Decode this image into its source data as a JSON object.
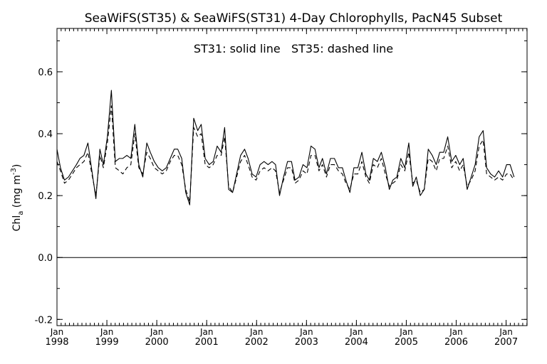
{
  "chart_data": {
    "type": "line",
    "title": "SeaWiFS(ST35) & SeaWiFS(ST31) 4-Day Chlorophylls, PacN45 Subset",
    "annotation": "ST31: solid line   ST35: dashed line",
    "ylabel": {
      "main": "Chl",
      "sub": "a",
      "unit_prefix": " (mg m",
      "unit_sup": "-3",
      "unit_suffix": ")"
    },
    "ylim": [
      -0.22,
      0.74
    ],
    "xlim": [
      1998.0,
      2007.42
    ],
    "yticks": [
      {
        "value": -0.2,
        "label": "-0.2"
      },
      {
        "value": 0.0,
        "label": "0.0"
      },
      {
        "value": 0.2,
        "label": "0.2"
      },
      {
        "value": 0.4,
        "label": "0.4"
      },
      {
        "value": 0.6,
        "label": "0.6"
      }
    ],
    "xticks": [
      {
        "value": 1998,
        "month": "Jan",
        "year": "1998"
      },
      {
        "value": 1999,
        "month": "Jan",
        "year": "1999"
      },
      {
        "value": 2000,
        "month": "Jan",
        "year": "2000"
      },
      {
        "value": 2001,
        "month": "Jan",
        "year": "2001"
      },
      {
        "value": 2002,
        "month": "Jan",
        "year": "2002"
      },
      {
        "value": 2003,
        "month": "Jan",
        "year": "2003"
      },
      {
        "value": 2004,
        "month": "Jan",
        "year": "2004"
      },
      {
        "value": 2005,
        "month": "Jan",
        "year": "2005"
      },
      {
        "value": 2006,
        "month": "Jan",
        "year": "2006"
      },
      {
        "value": 2007,
        "month": "Jan",
        "year": "2007"
      }
    ],
    "zero_line": 0.0,
    "grid": false,
    "series": [
      {
        "name": "ST31",
        "style": "solid",
        "points": [
          [
            1998.0,
            0.35
          ],
          [
            1998.07,
            0.29
          ],
          [
            1998.15,
            0.25
          ],
          [
            1998.23,
            0.26
          ],
          [
            1998.31,
            0.28
          ],
          [
            1998.39,
            0.3
          ],
          [
            1998.46,
            0.32
          ],
          [
            1998.54,
            0.33
          ],
          [
            1998.62,
            0.37
          ],
          [
            1998.7,
            0.28
          ],
          [
            1998.78,
            0.19
          ],
          [
            1998.86,
            0.35
          ],
          [
            1998.93,
            0.3
          ],
          [
            1999.01,
            0.39
          ],
          [
            1999.09,
            0.54
          ],
          [
            1999.17,
            0.31
          ],
          [
            1999.25,
            0.32
          ],
          [
            1999.32,
            0.32
          ],
          [
            1999.4,
            0.33
          ],
          [
            1999.48,
            0.32
          ],
          [
            1999.56,
            0.43
          ],
          [
            1999.64,
            0.3
          ],
          [
            1999.72,
            0.26
          ],
          [
            1999.8,
            0.37
          ],
          [
            1999.87,
            0.34
          ],
          [
            1999.95,
            0.31
          ],
          [
            2000.03,
            0.29
          ],
          [
            2000.11,
            0.28
          ],
          [
            2000.19,
            0.29
          ],
          [
            2000.27,
            0.32
          ],
          [
            2000.35,
            0.35
          ],
          [
            2000.42,
            0.35
          ],
          [
            2000.5,
            0.32
          ],
          [
            2000.58,
            0.21
          ],
          [
            2000.66,
            0.17
          ],
          [
            2000.74,
            0.45
          ],
          [
            2000.82,
            0.41
          ],
          [
            2000.89,
            0.43
          ],
          [
            2000.97,
            0.32
          ],
          [
            2001.05,
            0.3
          ],
          [
            2001.13,
            0.31
          ],
          [
            2001.21,
            0.36
          ],
          [
            2001.29,
            0.34
          ],
          [
            2001.36,
            0.42
          ],
          [
            2001.44,
            0.22
          ],
          [
            2001.52,
            0.21
          ],
          [
            2001.6,
            0.27
          ],
          [
            2001.68,
            0.33
          ],
          [
            2001.76,
            0.35
          ],
          [
            2001.83,
            0.32
          ],
          [
            2001.91,
            0.27
          ],
          [
            2001.99,
            0.26
          ],
          [
            2002.07,
            0.3
          ],
          [
            2002.15,
            0.31
          ],
          [
            2002.23,
            0.3
          ],
          [
            2002.31,
            0.31
          ],
          [
            2002.38,
            0.3
          ],
          [
            2002.46,
            0.2
          ],
          [
            2002.54,
            0.26
          ],
          [
            2002.62,
            0.31
          ],
          [
            2002.7,
            0.31
          ],
          [
            2002.77,
            0.25
          ],
          [
            2002.85,
            0.26
          ],
          [
            2002.93,
            0.3
          ],
          [
            2003.01,
            0.29
          ],
          [
            2003.09,
            0.36
          ],
          [
            2003.17,
            0.35
          ],
          [
            2003.25,
            0.29
          ],
          [
            2003.32,
            0.32
          ],
          [
            2003.4,
            0.27
          ],
          [
            2003.48,
            0.32
          ],
          [
            2003.56,
            0.32
          ],
          [
            2003.64,
            0.29
          ],
          [
            2003.72,
            0.29
          ],
          [
            2003.79,
            0.25
          ],
          [
            2003.87,
            0.21
          ],
          [
            2003.95,
            0.29
          ],
          [
            2004.03,
            0.29
          ],
          [
            2004.11,
            0.34
          ],
          [
            2004.19,
            0.27
          ],
          [
            2004.26,
            0.25
          ],
          [
            2004.34,
            0.32
          ],
          [
            2004.42,
            0.31
          ],
          [
            2004.5,
            0.34
          ],
          [
            2004.58,
            0.29
          ],
          [
            2004.66,
            0.22
          ],
          [
            2004.73,
            0.25
          ],
          [
            2004.81,
            0.26
          ],
          [
            2004.89,
            0.32
          ],
          [
            2004.97,
            0.29
          ],
          [
            2005.05,
            0.37
          ],
          [
            2005.13,
            0.23
          ],
          [
            2005.2,
            0.26
          ],
          [
            2005.28,
            0.2
          ],
          [
            2005.36,
            0.22
          ],
          [
            2005.44,
            0.35
          ],
          [
            2005.52,
            0.33
          ],
          [
            2005.6,
            0.3
          ],
          [
            2005.67,
            0.34
          ],
          [
            2005.75,
            0.34
          ],
          [
            2005.83,
            0.39
          ],
          [
            2005.91,
            0.31
          ],
          [
            2005.99,
            0.33
          ],
          [
            2006.07,
            0.3
          ],
          [
            2006.14,
            0.32
          ],
          [
            2006.22,
            0.22
          ],
          [
            2006.3,
            0.26
          ],
          [
            2006.38,
            0.3
          ],
          [
            2006.46,
            0.39
          ],
          [
            2006.54,
            0.41
          ],
          [
            2006.61,
            0.29
          ],
          [
            2006.69,
            0.27
          ],
          [
            2006.77,
            0.26
          ],
          [
            2006.85,
            0.28
          ],
          [
            2006.93,
            0.26
          ],
          [
            2007.01,
            0.3
          ],
          [
            2007.08,
            0.3
          ],
          [
            2007.16,
            0.26
          ]
        ]
      },
      {
        "name": "ST35",
        "style": "dashed",
        "points": [
          [
            1998.0,
            0.31
          ],
          [
            1998.07,
            0.28
          ],
          [
            1998.15,
            0.24
          ],
          [
            1998.23,
            0.25
          ],
          [
            1998.31,
            0.27
          ],
          [
            1998.39,
            0.29
          ],
          [
            1998.46,
            0.3
          ],
          [
            1998.54,
            0.31
          ],
          [
            1998.62,
            0.34
          ],
          [
            1998.7,
            0.27
          ],
          [
            1998.78,
            0.2
          ],
          [
            1998.86,
            0.33
          ],
          [
            1998.93,
            0.29
          ],
          [
            1999.01,
            0.37
          ],
          [
            1999.09,
            0.49
          ],
          [
            1999.17,
            0.29
          ],
          [
            1999.25,
            0.28
          ],
          [
            1999.32,
            0.27
          ],
          [
            1999.4,
            0.29
          ],
          [
            1999.48,
            0.3
          ],
          [
            1999.56,
            0.4
          ],
          [
            1999.64,
            0.29
          ],
          [
            1999.72,
            0.27
          ],
          [
            1999.8,
            0.34
          ],
          [
            1999.87,
            0.32
          ],
          [
            1999.95,
            0.29
          ],
          [
            2000.03,
            0.28
          ],
          [
            2000.11,
            0.27
          ],
          [
            2000.19,
            0.28
          ],
          [
            2000.27,
            0.31
          ],
          [
            2000.35,
            0.33
          ],
          [
            2000.42,
            0.33
          ],
          [
            2000.5,
            0.3
          ],
          [
            2000.58,
            0.22
          ],
          [
            2000.66,
            0.18
          ],
          [
            2000.74,
            0.42
          ],
          [
            2000.82,
            0.39
          ],
          [
            2000.89,
            0.4
          ],
          [
            2000.97,
            0.3
          ],
          [
            2001.05,
            0.29
          ],
          [
            2001.13,
            0.3
          ],
          [
            2001.21,
            0.33
          ],
          [
            2001.29,
            0.33
          ],
          [
            2001.36,
            0.39
          ],
          [
            2001.44,
            0.23
          ],
          [
            2001.52,
            0.21
          ],
          [
            2001.6,
            0.26
          ],
          [
            2001.68,
            0.31
          ],
          [
            2001.76,
            0.33
          ],
          [
            2001.83,
            0.3
          ],
          [
            2001.91,
            0.26
          ],
          [
            2001.99,
            0.25
          ],
          [
            2002.07,
            0.28
          ],
          [
            2002.15,
            0.29
          ],
          [
            2002.23,
            0.28
          ],
          [
            2002.31,
            0.29
          ],
          [
            2002.38,
            0.28
          ],
          [
            2002.46,
            0.21
          ],
          [
            2002.54,
            0.25
          ],
          [
            2002.62,
            0.29
          ],
          [
            2002.7,
            0.29
          ],
          [
            2002.77,
            0.24
          ],
          [
            2002.85,
            0.25
          ],
          [
            2002.93,
            0.28
          ],
          [
            2003.01,
            0.27
          ],
          [
            2003.09,
            0.33
          ],
          [
            2003.17,
            0.33
          ],
          [
            2003.25,
            0.28
          ],
          [
            2003.32,
            0.3
          ],
          [
            2003.4,
            0.26
          ],
          [
            2003.48,
            0.3
          ],
          [
            2003.56,
            0.3
          ],
          [
            2003.64,
            0.28
          ],
          [
            2003.72,
            0.27
          ],
          [
            2003.79,
            0.24
          ],
          [
            2003.87,
            0.22
          ],
          [
            2003.95,
            0.27
          ],
          [
            2004.03,
            0.27
          ],
          [
            2004.11,
            0.31
          ],
          [
            2004.19,
            0.26
          ],
          [
            2004.26,
            0.24
          ],
          [
            2004.34,
            0.3
          ],
          [
            2004.42,
            0.29
          ],
          [
            2004.5,
            0.32
          ],
          [
            2004.58,
            0.27
          ],
          [
            2004.66,
            0.23
          ],
          [
            2004.73,
            0.24
          ],
          [
            2004.81,
            0.25
          ],
          [
            2004.89,
            0.3
          ],
          [
            2004.97,
            0.28
          ],
          [
            2005.05,
            0.34
          ],
          [
            2005.13,
            0.24
          ],
          [
            2005.2,
            0.25
          ],
          [
            2005.28,
            0.21
          ],
          [
            2005.36,
            0.22
          ],
          [
            2005.44,
            0.32
          ],
          [
            2005.52,
            0.31
          ],
          [
            2005.6,
            0.28
          ],
          [
            2005.67,
            0.32
          ],
          [
            2005.75,
            0.32
          ],
          [
            2005.83,
            0.36
          ],
          [
            2005.91,
            0.29
          ],
          [
            2005.99,
            0.31
          ],
          [
            2006.07,
            0.28
          ],
          [
            2006.14,
            0.3
          ],
          [
            2006.22,
            0.23
          ],
          [
            2006.3,
            0.25
          ],
          [
            2006.38,
            0.28
          ],
          [
            2006.46,
            0.36
          ],
          [
            2006.54,
            0.38
          ],
          [
            2006.61,
            0.27
          ],
          [
            2006.69,
            0.26
          ],
          [
            2006.77,
            0.25
          ],
          [
            2006.85,
            0.26
          ],
          [
            2006.93,
            0.25
          ],
          [
            2007.01,
            0.27
          ],
          [
            2007.08,
            0.27
          ],
          [
            2007.16,
            0.25
          ]
        ]
      }
    ]
  }
}
